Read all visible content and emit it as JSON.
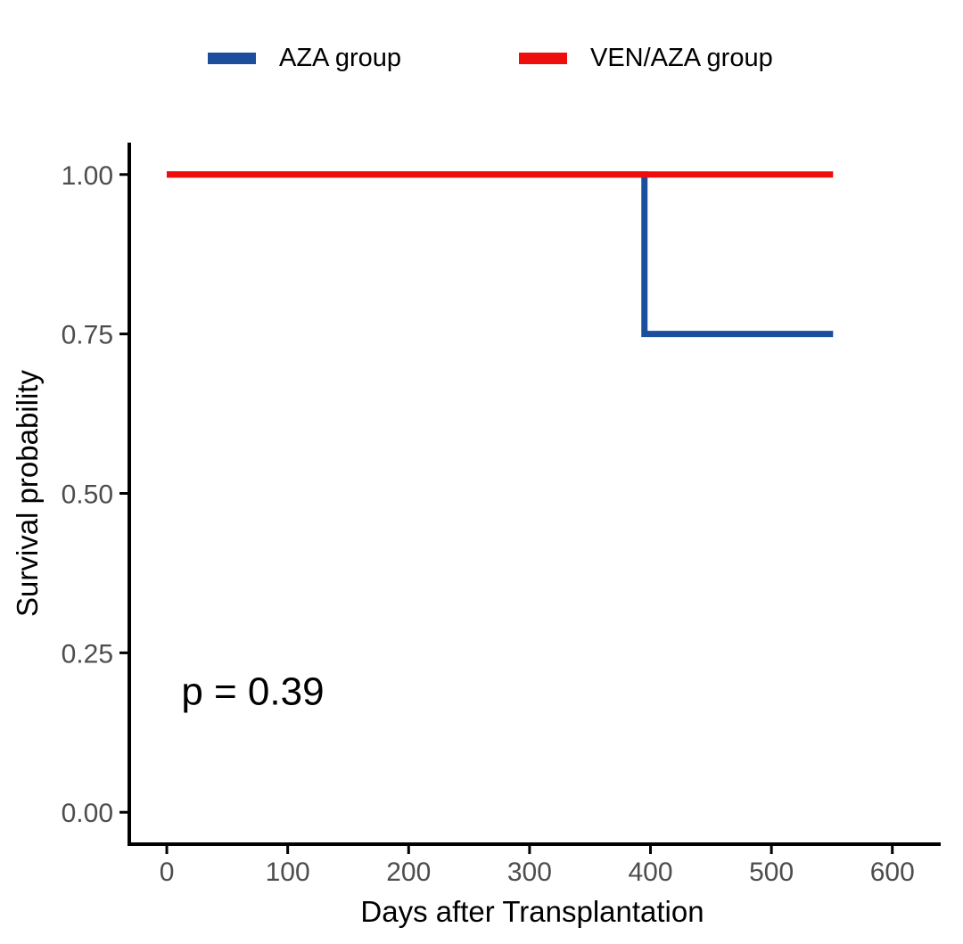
{
  "legend": {
    "position": "top",
    "items": [
      {
        "label": "AZA group",
        "color": "#1B4E9C"
      },
      {
        "label": "VEN/AZA group",
        "color": "#EE0E0E"
      }
    ]
  },
  "chart_data": {
    "type": "line",
    "subtype": "kaplan-meier-survival-step",
    "title": "",
    "xlabel": "Days after Transplantation",
    "ylabel": "Survival probability",
    "xlim": [
      -31,
      640
    ],
    "ylim": [
      -0.05,
      1.05
    ],
    "grid": false,
    "legend_position": "top",
    "axis_text_color": "#4D4D4D",
    "axis_color": "#000000",
    "x_ticks": [
      {
        "value": 0,
        "label": "0"
      },
      {
        "value": 100,
        "label": "100"
      },
      {
        "value": 200,
        "label": "200"
      },
      {
        "value": 300,
        "label": "300"
      },
      {
        "value": 400,
        "label": "400"
      },
      {
        "value": 500,
        "label": "500"
      },
      {
        "value": 600,
        "label": "600"
      }
    ],
    "y_ticks": [
      {
        "value": 0.0,
        "label": "0.00"
      },
      {
        "value": 0.25,
        "label": "0.25"
      },
      {
        "value": 0.5,
        "label": "0.50"
      },
      {
        "value": 0.75,
        "label": "0.75"
      },
      {
        "value": 1.0,
        "label": "1.00"
      }
    ],
    "annotation": {
      "text": "p = 0.39",
      "x": 12,
      "y": 0.19
    },
    "series": [
      {
        "name": "AZA group",
        "color": "#1B4E9C",
        "step_points": [
          [
            0,
            1.0
          ],
          [
            395,
            1.0
          ],
          [
            395,
            0.75
          ],
          [
            551,
            0.75
          ]
        ]
      },
      {
        "name": "VEN/AZA group",
        "color": "#EE0E0E",
        "step_points": [
          [
            0,
            1.0
          ],
          [
            551,
            1.0
          ]
        ]
      }
    ]
  }
}
